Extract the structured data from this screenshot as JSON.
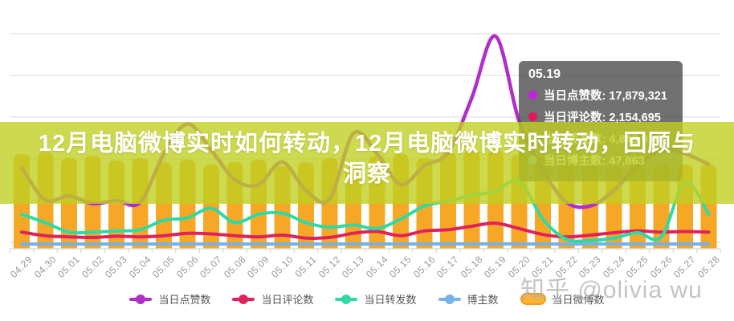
{
  "page": {
    "background": "#ffffff"
  },
  "title_overlay": {
    "line1": "12月电脑微博实时如何转动，12月电脑微博实时转动，回顾与",
    "line2": "洞察",
    "band_color": "rgba(192,207,34,0.8)",
    "text_color": "#ffffff"
  },
  "tooltip": {
    "title": "05.19",
    "rows": [
      {
        "label": "当日点赞数",
        "value": "17,879,321",
        "color": "#c322e0"
      },
      {
        "label": "当日评论数",
        "value": "2,154,695",
        "color": "#e6175e"
      },
      {
        "label": "当日转发数",
        "value": "4,843,014",
        "color": "#2fd9a6"
      },
      {
        "label": "当日博主数",
        "value": "47,863",
        "color": "#74b2ea"
      }
    ]
  },
  "legend": {
    "items": [
      {
        "label": "当日点赞数",
        "marker": "line-dot",
        "color": "#b02ec9"
      },
      {
        "label": "当日评论数",
        "marker": "line-dot",
        "color": "#e0225c"
      },
      {
        "label": "当日转发数",
        "marker": "line-dot",
        "color": "#2fd9a6"
      },
      {
        "label": "博主数",
        "marker": "line-dot",
        "color": "#74b2ea"
      },
      {
        "label": "当日微博数",
        "marker": "bar",
        "color": "#fbb335",
        "border_color": "#f09d1f"
      }
    ]
  },
  "watermark": {
    "text": "知乎 @olivia wu",
    "color": "#b0b0b0"
  },
  "chart_data": {
    "type": "bar",
    "subtype": "combo-bar-line",
    "title": "",
    "xlabel": "",
    "ylabel": "",
    "grid": true,
    "legend_position": "bottom",
    "x_axis_rotate_deg": 45,
    "categories": [
      "04.29",
      "04.30",
      "05.01",
      "05.02",
      "05.03",
      "05.04",
      "05.05",
      "05.06",
      "05.07",
      "05.08",
      "05.09",
      "05.10",
      "05.11",
      "05.12",
      "05.13",
      "05.14",
      "05.15",
      "05.16",
      "05.17",
      "05.18",
      "05.19",
      "05.20",
      "05.21",
      "05.22",
      "05.23",
      "05.24",
      "05.25",
      "05.26",
      "05.27",
      "05.28"
    ],
    "series": [
      {
        "name": "当日点赞数",
        "type": "line",
        "color": "#b02ec9",
        "values": [
          6800000,
          4100000,
          4450000,
          3800000,
          4050000,
          3900000,
          8000000,
          10500000,
          8300000,
          5800000,
          5400000,
          7300000,
          4900000,
          4200000,
          9700000,
          8000000,
          5400000,
          7000000,
          8100000,
          12700000,
          17879321,
          10700000,
          6600000,
          3900000,
          3600000,
          4900000,
          7000000,
          8300000,
          8000000,
          7100000
        ]
      },
      {
        "name": "当日评论数",
        "type": "line",
        "color": "#e0225c",
        "values": [
          1400000,
          1100000,
          1000000,
          950000,
          1050000,
          1000000,
          1100000,
          1300000,
          1250000,
          1100000,
          1000000,
          1150000,
          900000,
          950000,
          1300000,
          1450000,
          1100000,
          1500000,
          1600000,
          1900000,
          2154695,
          1700000,
          1200000,
          1000000,
          1150000,
          1350000,
          1500000,
          1400000,
          1450000,
          1400000
        ]
      },
      {
        "name": "当日转发数",
        "type": "line",
        "color": "#2fd9a6",
        "values": [
          2900000,
          2200000,
          1400000,
          1400000,
          1500000,
          1600000,
          2400000,
          2600000,
          3400000,
          2200000,
          2900000,
          3000000,
          2200000,
          1800000,
          2000000,
          1700000,
          2500000,
          3600000,
          4000000,
          4500000,
          4843014,
          5700000,
          2500000,
          800000,
          700000,
          900000,
          1350000,
          1000000,
          5600000,
          2900000
        ]
      },
      {
        "name": "博主数",
        "type": "line",
        "color": "#74b2ea",
        "values": [
          46000,
          46500,
          45800,
          46200,
          47000,
          46800,
          47200,
          46900,
          46500,
          47000,
          47500,
          47200,
          46800,
          46400,
          47000,
          47300,
          47600,
          47200,
          47800,
          48000,
          47863,
          47500,
          47000,
          46600,
          46900,
          47200,
          47400,
          47100,
          46800,
          47000
        ]
      },
      {
        "name": "当日微博数",
        "type": "bar",
        "color": "#f6a726",
        "values": [
          50700,
          51600,
          48600,
          49900,
          47300,
          48600,
          46400,
          47700,
          45200,
          46400,
          47700,
          44300,
          46400,
          48600,
          44300,
          49900,
          50700,
          48600,
          51600,
          52900,
          52900,
          50700,
          48600,
          46400,
          45200,
          44300,
          46400,
          45200,
          45200,
          45200
        ]
      }
    ],
    "tooltip_point": {
      "category": "05.19",
      "当日点赞数": 17879321,
      "当日评论数": 2154695,
      "当日转发数": 4843014,
      "当日博主数": 47863
    }
  }
}
